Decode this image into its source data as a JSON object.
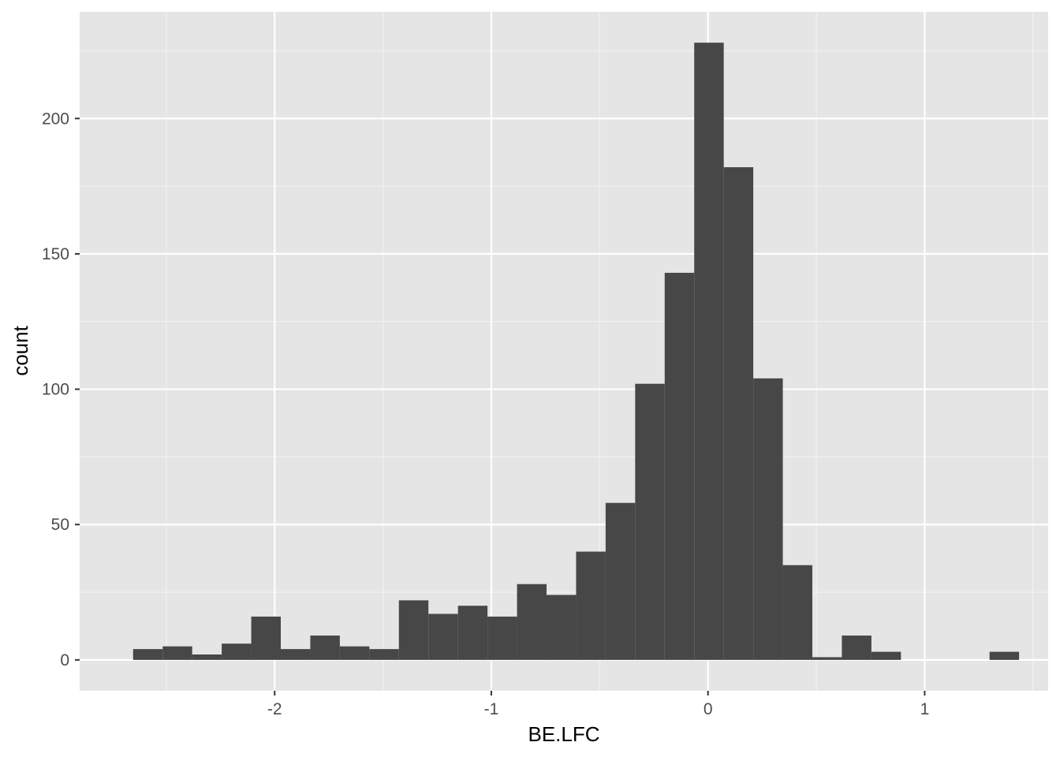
{
  "chart_data": {
    "type": "histogram",
    "title": "",
    "xlabel": "BE.LFC",
    "ylabel": "count",
    "xlim": [
      -2.9,
      1.57
    ],
    "ylim": [
      -11.4,
      239.4
    ],
    "x_ticks": [
      -2,
      -1,
      0,
      1
    ],
    "x_tick_labels": [
      "-2",
      "-1",
      "0",
      "1"
    ],
    "y_ticks": [
      0,
      50,
      100,
      150,
      200
    ],
    "y_tick_labels": [
      "0",
      "50",
      "100",
      "150",
      "200"
    ],
    "grid": true,
    "bin_width": 0.1363,
    "bins": [
      {
        "x0": -2.6533,
        "x1": -2.517,
        "count": 4
      },
      {
        "x0": -2.517,
        "x1": -2.3807,
        "count": 5
      },
      {
        "x0": -2.3807,
        "x1": -2.2444,
        "count": 2
      },
      {
        "x0": -2.2444,
        "x1": -2.1081,
        "count": 6
      },
      {
        "x0": -2.1081,
        "x1": -1.9718,
        "count": 16
      },
      {
        "x0": -1.9718,
        "x1": -1.8355,
        "count": 4
      },
      {
        "x0": -1.8355,
        "x1": -1.6992,
        "count": 9
      },
      {
        "x0": -1.6992,
        "x1": -1.5629,
        "count": 5
      },
      {
        "x0": -1.5629,
        "x1": -1.4266,
        "count": 4
      },
      {
        "x0": -1.4266,
        "x1": -1.2903,
        "count": 22
      },
      {
        "x0": -1.2903,
        "x1": -1.154,
        "count": 17
      },
      {
        "x0": -1.154,
        "x1": -1.0177,
        "count": 20
      },
      {
        "x0": -1.0177,
        "x1": -0.8814,
        "count": 16
      },
      {
        "x0": -0.8814,
        "x1": -0.7451,
        "count": 28
      },
      {
        "x0": -0.7451,
        "x1": -0.6088,
        "count": 24
      },
      {
        "x0": -0.6088,
        "x1": -0.4725,
        "count": 40
      },
      {
        "x0": -0.4725,
        "x1": -0.3362,
        "count": 58
      },
      {
        "x0": -0.3362,
        "x1": -0.1999,
        "count": 102
      },
      {
        "x0": -0.1999,
        "x1": -0.0636,
        "count": 143
      },
      {
        "x0": -0.0636,
        "x1": 0.0727,
        "count": 228
      },
      {
        "x0": 0.0727,
        "x1": 0.209,
        "count": 182
      },
      {
        "x0": 0.209,
        "x1": 0.3453,
        "count": 104
      },
      {
        "x0": 0.3453,
        "x1": 0.4816,
        "count": 35
      },
      {
        "x0": 0.4816,
        "x1": 0.6179,
        "count": 1
      },
      {
        "x0": 0.6179,
        "x1": 0.7542,
        "count": 9
      },
      {
        "x0": 0.7542,
        "x1": 0.8905,
        "count": 3
      },
      {
        "x0": 0.8905,
        "x1": 1.0268,
        "count": 0
      },
      {
        "x0": 1.0268,
        "x1": 1.1631,
        "count": 0
      },
      {
        "x0": 1.1631,
        "x1": 1.2994,
        "count": 0
      },
      {
        "x0": 1.2994,
        "x1": 1.4357,
        "count": 3
      }
    ],
    "colors": {
      "panel_background": "#e5e5e5",
      "grid_major": "#ffffff",
      "grid_minor": "#f2f2f2",
      "bar_fill": "#474747",
      "tick_text": "#4d4d4d",
      "tick_mark": "#333333",
      "axis_title": "#000000"
    }
  }
}
